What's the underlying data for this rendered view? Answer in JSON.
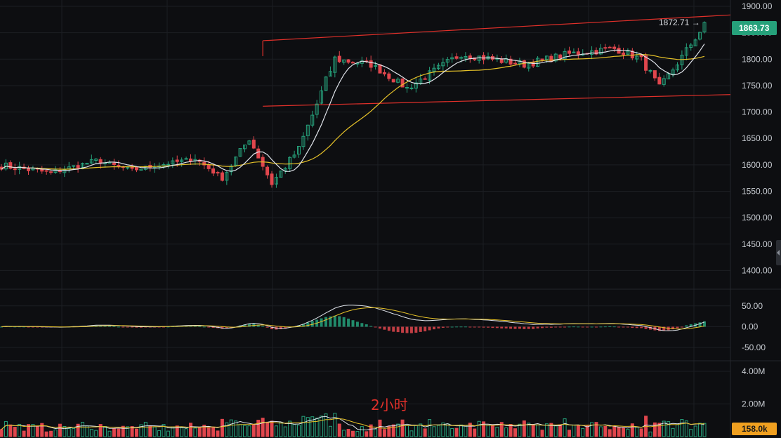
{
  "chart_data": {
    "type": "candlestick",
    "timeframe_label": "2小时",
    "current_price": "1863.73",
    "period_high": "1872.71",
    "period_high_marker": "1872.71 →",
    "current_volume": "158.0k",
    "price_axis": {
      "ylim": [
        1370,
        1912
      ],
      "ticks": [
        "1900.00",
        "1850.00",
        "1800.00",
        "1750.00",
        "1700.00",
        "1650.00",
        "1600.00",
        "1550.00",
        "1500.00",
        "1450.00",
        "1400.00"
      ],
      "tick_values": [
        1900,
        1850,
        1800,
        1750,
        1700,
        1650,
        1600,
        1550,
        1500,
        1450,
        1400
      ]
    },
    "macd_axis": {
      "ylim": [
        -75,
        80
      ],
      "ticks": [
        "50.00",
        "0.00",
        "-50.00"
      ],
      "tick_values": [
        50,
        0,
        -50
      ]
    },
    "volume_axis": {
      "ylim": [
        0,
        4600000
      ],
      "ticks": [
        "4.00M",
        "2.00M"
      ],
      "tick_values": [
        4000000,
        2000000
      ]
    },
    "trend_channel": {
      "upper": [
        [
          58,
          1835
        ],
        [
          171,
          1888
        ]
      ],
      "lower": [
        [
          58,
          1711
        ],
        [
          171,
          1735
        ]
      ]
    },
    "segments": [
      {
        "n": 12,
        "from": 1600,
        "to": 1585,
        "noise": 14
      },
      {
        "n": 10,
        "from": 1585,
        "to": 1608,
        "noise": 10
      },
      {
        "n": 8,
        "from": 1608,
        "to": 1590,
        "noise": 8
      },
      {
        "n": 14,
        "from": 1590,
        "to": 1612,
        "noise": 8
      },
      {
        "n": 6,
        "from": 1612,
        "to": 1575,
        "noise": 10
      },
      {
        "n": 6,
        "from": 1575,
        "to": 1650,
        "noise": 14
      },
      {
        "n": 5,
        "from": 1650,
        "to": 1565,
        "noise": 14
      },
      {
        "n": 6,
        "from": 1565,
        "to": 1630,
        "noise": 14
      },
      {
        "n": 8,
        "from": 1630,
        "to": 1800,
        "noise": 20
      },
      {
        "n": 8,
        "from": 1800,
        "to": 1790,
        "noise": 14
      },
      {
        "n": 8,
        "from": 1790,
        "to": 1745,
        "noise": 12
      },
      {
        "n": 12,
        "from": 1745,
        "to": 1810,
        "noise": 14
      },
      {
        "n": 14,
        "from": 1810,
        "to": 1790,
        "noise": 14
      },
      {
        "n": 10,
        "from": 1790,
        "to": 1810,
        "noise": 14
      },
      {
        "n": 10,
        "from": 1810,
        "to": 1820,
        "noise": 14
      },
      {
        "n": 6,
        "from": 1820,
        "to": 1800,
        "noise": 12
      },
      {
        "n": 4,
        "from": 1800,
        "to": 1745,
        "noise": 16
      },
      {
        "n": 10,
        "from": 1745,
        "to": 1864,
        "noise": 14
      }
    ],
    "series": [
      {
        "name": "",
        "kind": "candles",
        "up_color": "#26a17b",
        "down_color": "#e0464d"
      },
      {
        "name": "",
        "kind": "ma_short",
        "color": "#dfe3ea"
      },
      {
        "name": "",
        "kind": "ma_long",
        "color": "#e6c229"
      }
    ],
    "colors": {
      "background": "#0d0e11",
      "grid": "#1c1e23",
      "up": "#26a17b",
      "down": "#e0464d",
      "channel": "#e0302a",
      "ma_short": "#dfe3ea",
      "ma_long": "#e6c229",
      "price_tag": "#26a17b",
      "volume_tag": "#f0a020"
    }
  }
}
